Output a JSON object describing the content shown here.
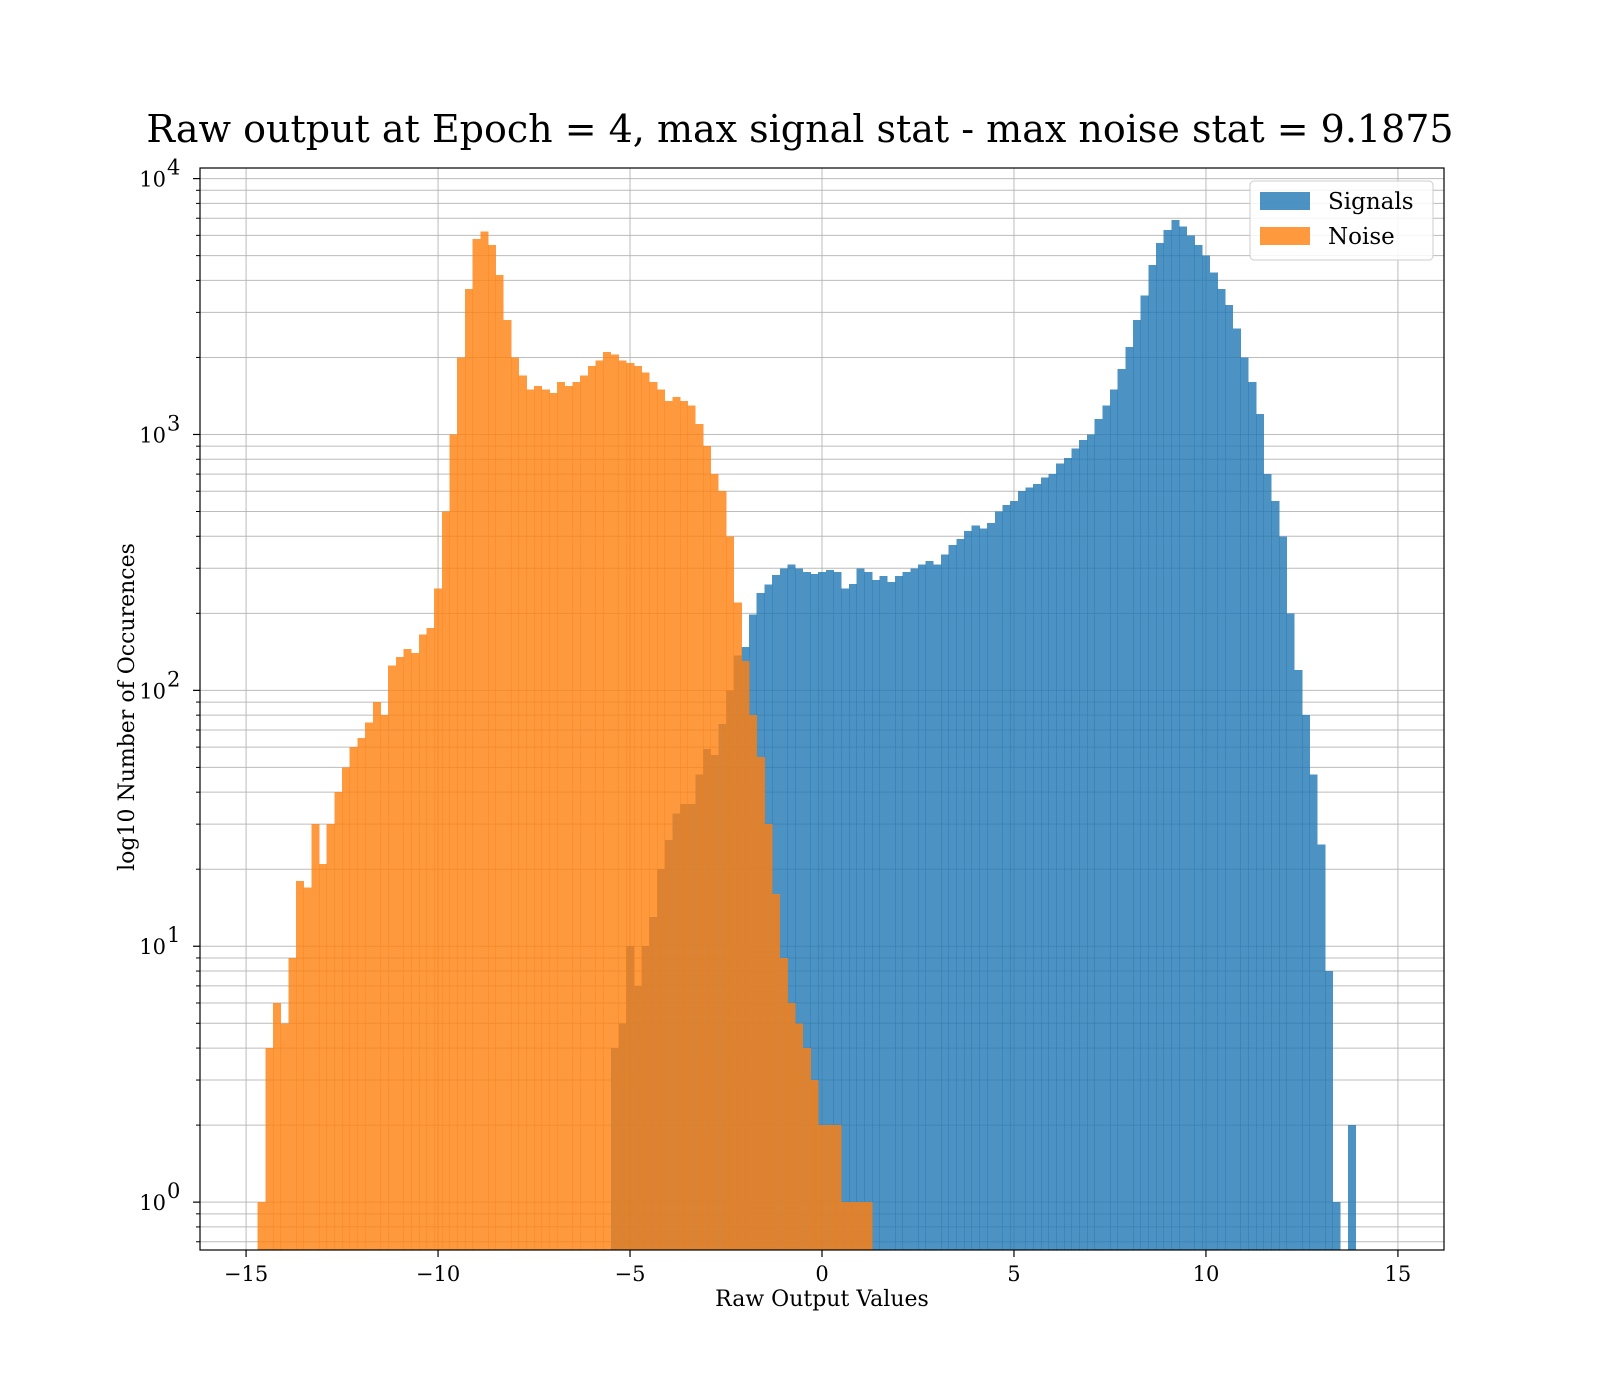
{
  "chart_data": {
    "type": "bar",
    "subtype": "histogram",
    "title": "Raw output at Epoch = 4, max signal stat - max noise stat = 9.1875",
    "xlabel": "Raw Output Values",
    "ylabel": "log10 Number of Occurences",
    "xlim": [
      -16.2,
      16.2
    ],
    "ylim": [
      0.65,
      11000
    ],
    "yscale": "log",
    "grid": true,
    "legend_position": "top-right",
    "x_ticks": [
      -15,
      -10,
      -5,
      0,
      5,
      10,
      15
    ],
    "x_tick_labels": [
      "−15",
      "−10",
      "−5",
      "0",
      "5",
      "10",
      "15"
    ],
    "y_ticks": [
      {
        "value": 1,
        "base": "10",
        "exp": "0"
      },
      {
        "value": 10,
        "base": "10",
        "exp": "1"
      },
      {
        "value": 100,
        "base": "10",
        "exp": "2"
      },
      {
        "value": 1000,
        "base": "10",
        "exp": "3"
      },
      {
        "value": 10000,
        "base": "10",
        "exp": "4"
      }
    ],
    "series": [
      {
        "name": "Signals",
        "color": "#1f77b4",
        "alpha": 0.8,
        "bin_start": -5.5,
        "bin_width": 0.2,
        "counts": [
          4,
          5,
          10,
          7,
          10,
          13,
          20,
          26,
          33,
          36,
          36,
          47,
          59,
          56,
          74,
          100,
          137,
          148,
          198,
          240,
          259,
          282,
          299,
          310,
          300,
          290,
          285,
          290,
          295,
          290,
          250,
          260,
          300,
          290,
          270,
          280,
          265,
          280,
          290,
          300,
          310,
          320,
          310,
          340,
          370,
          390,
          420,
          440,
          430,
          450,
          500,
          530,
          550,
          600,
          620,
          640,
          680,
          700,
          770,
          810,
          880,
          950,
          1000,
          1150,
          1300,
          1500,
          1800,
          2200,
          2800,
          3500,
          4600,
          5600,
          6300,
          6900,
          6500,
          6000,
          5500,
          5000,
          4300,
          3700,
          3200,
          2600,
          2000,
          1600,
          1200,
          700,
          550,
          400,
          200,
          120,
          80,
          47,
          25,
          8,
          1,
          0,
          2
        ]
      },
      {
        "name": "Noise",
        "color": "#ff7f0e",
        "alpha": 0.8,
        "bin_start": -14.7,
        "bin_width": 0.2,
        "counts": [
          1,
          4,
          6,
          5,
          9,
          18,
          17,
          30,
          21,
          30,
          40,
          50,
          60,
          65,
          75,
          90,
          80,
          125,
          135,
          145,
          140,
          165,
          175,
          250,
          500,
          1000,
          2000,
          3700,
          5800,
          6200,
          5500,
          4200,
          2800,
          2000,
          1700,
          1500,
          1550,
          1500,
          1450,
          1600,
          1550,
          1600,
          1700,
          1850,
          1950,
          2100,
          2050,
          1950,
          1900,
          1850,
          1750,
          1600,
          1500,
          1350,
          1400,
          1350,
          1300,
          1100,
          900,
          700,
          600,
          400,
          220,
          130,
          80,
          55,
          30,
          16,
          9,
          6,
          5,
          4,
          3,
          2,
          2,
          2,
          1,
          1,
          1,
          1
        ]
      }
    ]
  }
}
